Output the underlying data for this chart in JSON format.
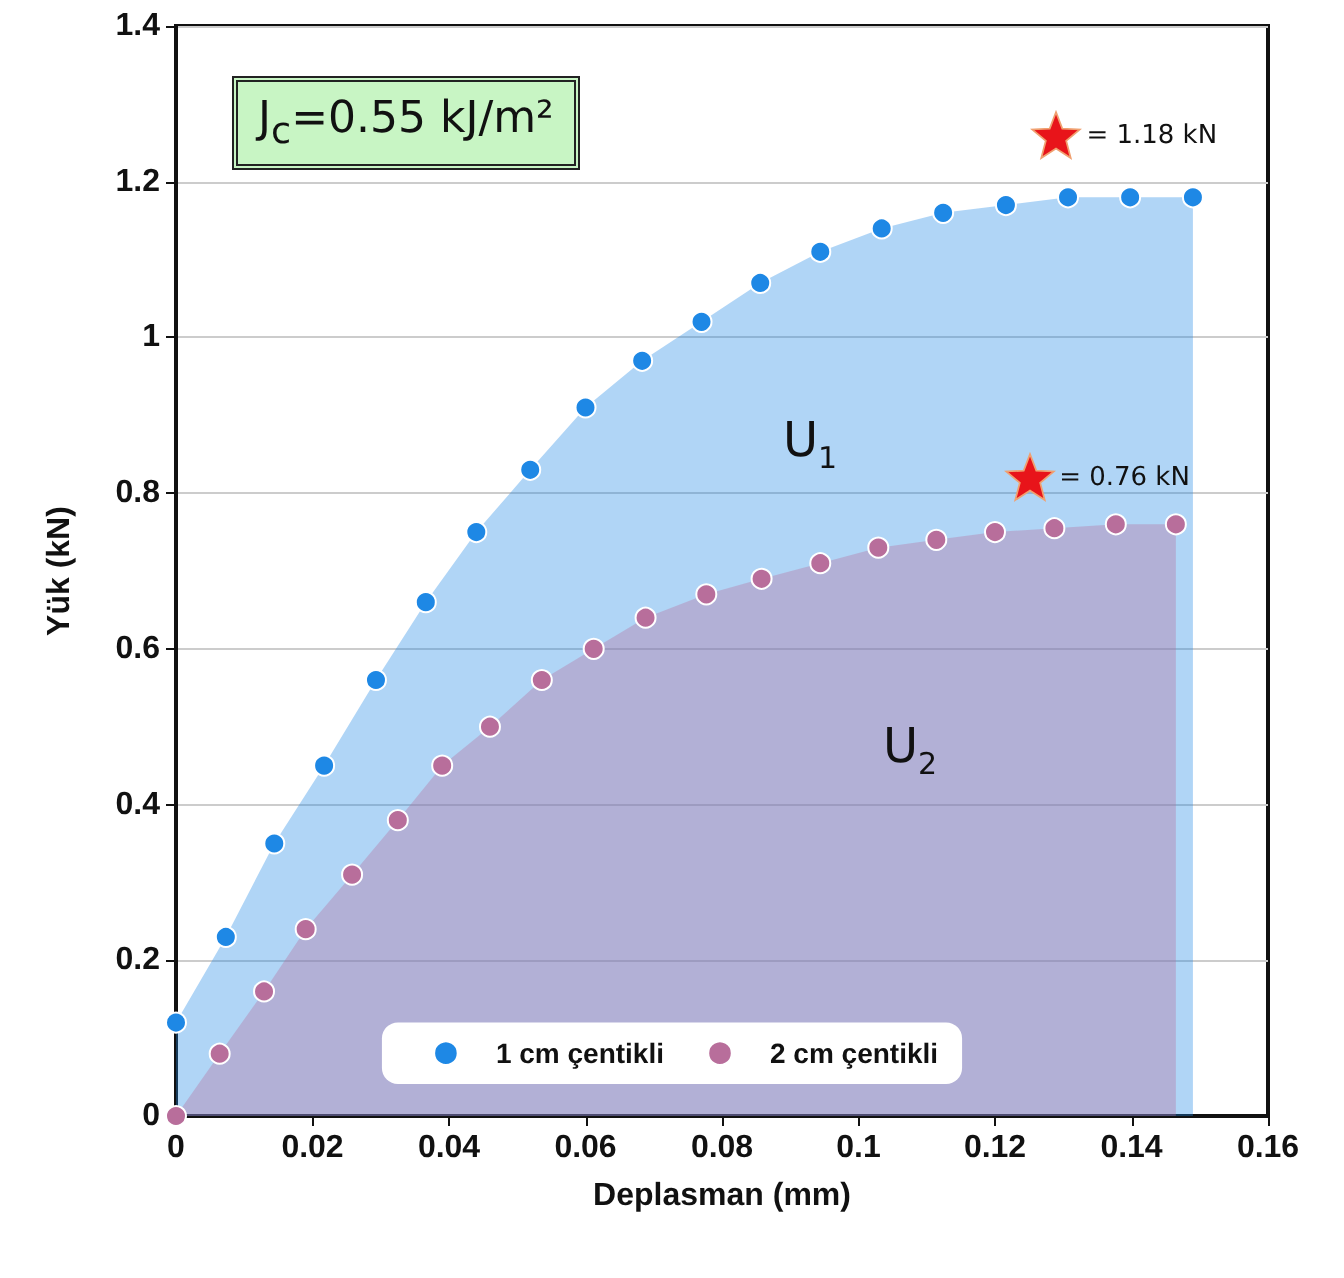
{
  "chart_data": {
    "type": "area",
    "xlabel": "Deplasman (mm)",
    "ylabel": "Yük (kN)",
    "xlim": [
      0,
      0.16
    ],
    "xticks": [
      0,
      0.02,
      0.04,
      0.06,
      0.08,
      0.1,
      0.12,
      0.14,
      0.16
    ],
    "ylim": [
      0,
      1.4
    ],
    "yticks": [
      0,
      0.2,
      0.4,
      0.6,
      0.8,
      1,
      1.2,
      1.4
    ],
    "grid": "y",
    "legend": "bottom",
    "marker": "circle",
    "series": [
      {
        "name": "1 cm çentikli",
        "color": "#1e88e5",
        "x": [
          0,
          0.0073,
          0.0144,
          0.0217,
          0.0293,
          0.0366,
          0.044,
          0.0519,
          0.06,
          0.0683,
          0.077,
          0.0856,
          0.0944,
          0.1034,
          0.1124,
          0.1216,
          0.1307,
          0.1398,
          0.149
        ],
        "values": [
          0.12,
          0.23,
          0.35,
          0.45,
          0.56,
          0.66,
          0.75,
          0.83,
          0.91,
          0.97,
          1.02,
          1.07,
          1.11,
          1.14,
          1.16,
          1.17,
          1.18,
          1.18,
          1.18
        ]
      },
      {
        "name": "2 cm çentikli",
        "color": "#b86e9b",
        "x": [
          0,
          0.0064,
          0.0129,
          0.019,
          0.0258,
          0.0325,
          0.039,
          0.046,
          0.0536,
          0.0612,
          0.0688,
          0.0777,
          0.0858,
          0.0944,
          0.1029,
          0.1114,
          0.12,
          0.1287,
          0.1377,
          0.1465
        ],
        "values": [
          0,
          0.08,
          0.16,
          0.24,
          0.31,
          0.38,
          0.45,
          0.5,
          0.56,
          0.6,
          0.64,
          0.67,
          0.69,
          0.71,
          0.73,
          0.74,
          0.75,
          0.755,
          0.76,
          0.76
        ]
      }
    ],
    "annotations": [
      "J$_{c}$=0.55 kJ/m²",
      {
        "text": "= 1.18 kN",
        "x": 0.129,
        "y": 1.26
      },
      {
        "text": "= 0.76 kN",
        "x": 0.125,
        "y": 0.82
      },
      "U$_{1}$",
      "U$_{2}$"
    ]
  }
}
